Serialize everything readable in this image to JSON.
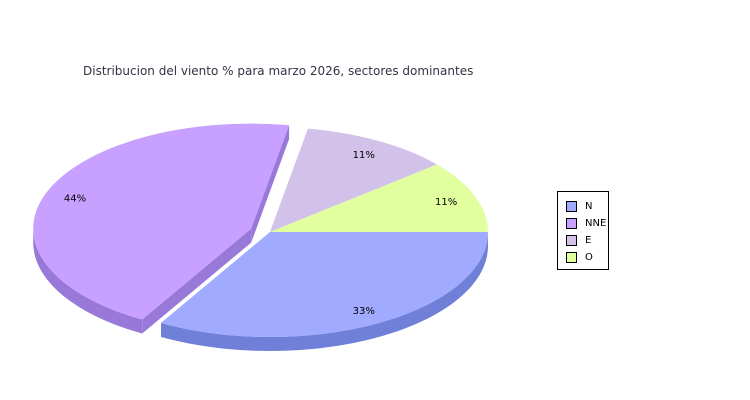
{
  "chart_data": {
    "type": "pie",
    "title": "Distribucion del viento % para marzo 2026, sectores dominantes",
    "categories": [
      "N",
      "NNE",
      "E",
      "O"
    ],
    "values": [
      33,
      44,
      11,
      11
    ],
    "labels": [
      "33%",
      "44%",
      "11%",
      "11%"
    ],
    "colors": [
      "#a0aaff",
      "#c8a0ff",
      "#d2c2ea",
      "#e2ffa0"
    ],
    "side_colors": [
      "#7080d8",
      "#9878d8",
      "#a898c8",
      "#b8d080"
    ],
    "exploded": [
      "NNE"
    ],
    "legend_position": "right",
    "style": "3d"
  }
}
